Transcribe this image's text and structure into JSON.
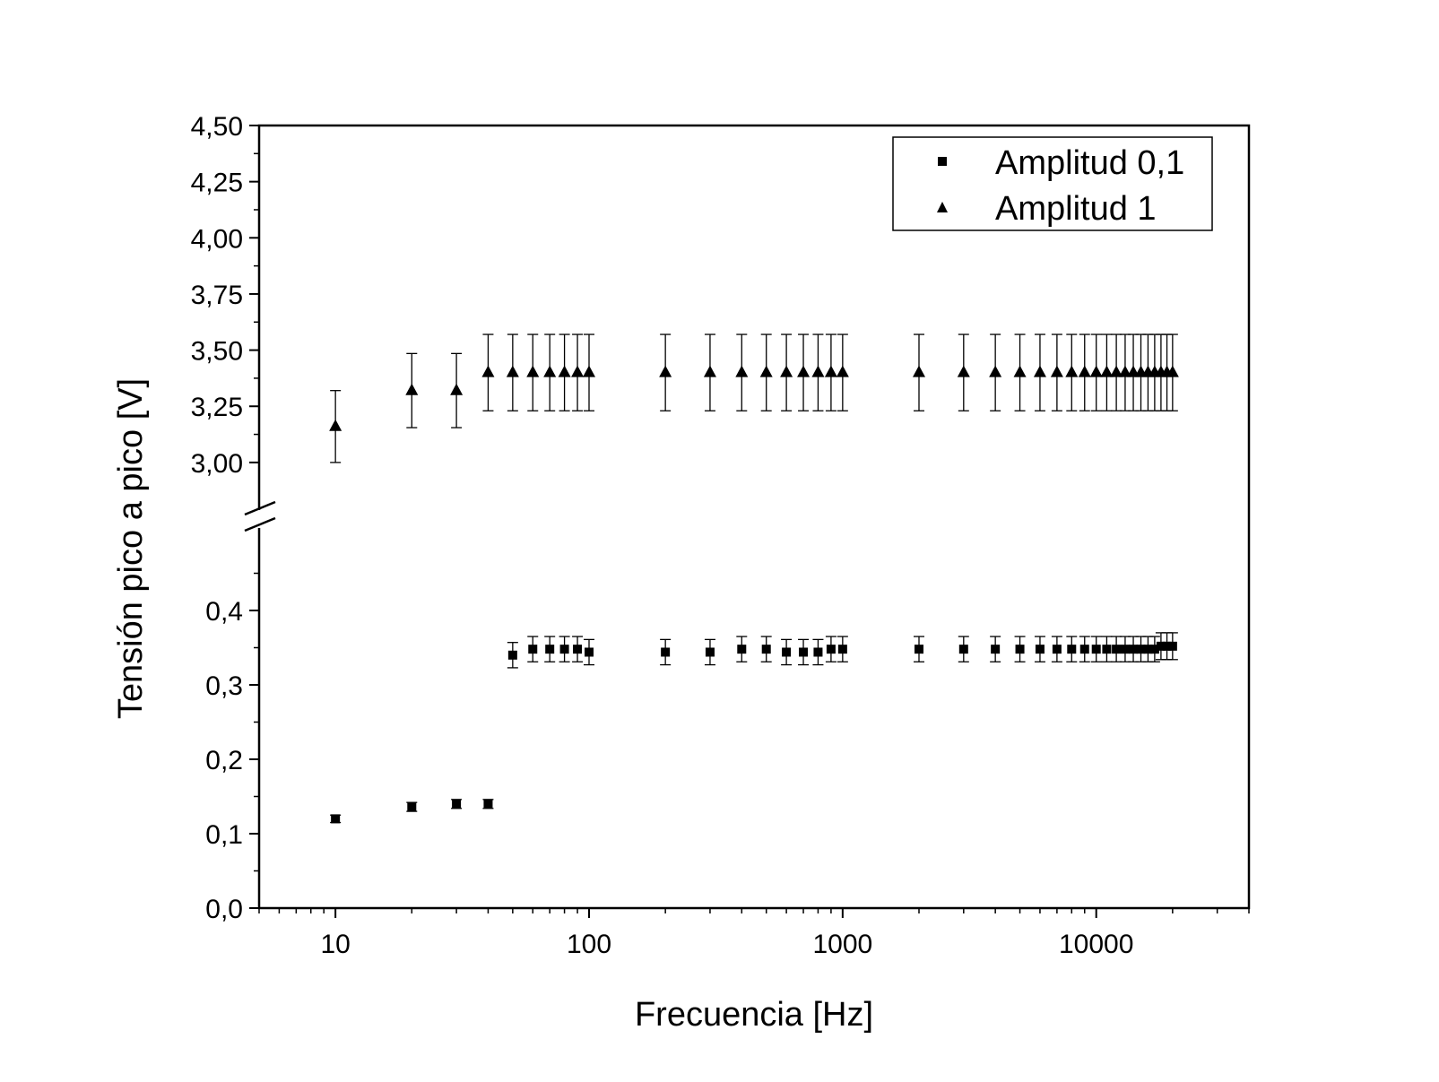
{
  "chart_data": {
    "type": "scatter",
    "xlabel": "Frecuencia [Hz]",
    "ylabel": "Tensión pico a pico [V]",
    "xscale": "log",
    "xlim": [
      5,
      40000
    ],
    "x_ticks": [
      {
        "value": 10,
        "label": "10"
      },
      {
        "value": 100,
        "label": "100"
      },
      {
        "value": 1000,
        "label": "1000"
      },
      {
        "value": 10000,
        "label": "10000"
      }
    ],
    "y_axis_break": true,
    "ylim_lower": [
      0,
      0.5
    ],
    "ylim_upper": [
      2.8,
      4.5
    ],
    "y_ticks_lower": [
      {
        "value": 0.0,
        "label": "0,0"
      },
      {
        "value": 0.1,
        "label": "0,1"
      },
      {
        "value": 0.2,
        "label": "0,2"
      },
      {
        "value": 0.3,
        "label": "0,3"
      },
      {
        "value": 0.4,
        "label": "0,4"
      }
    ],
    "y_ticks_upper": [
      {
        "value": 3.0,
        "label": "3,00"
      },
      {
        "value": 3.25,
        "label": "3,25"
      },
      {
        "value": 3.5,
        "label": "3,50"
      },
      {
        "value": 3.75,
        "label": "3,75"
      },
      {
        "value": 4.0,
        "label": "4,00"
      },
      {
        "value": 4.25,
        "label": "4,25"
      },
      {
        "value": 4.5,
        "label": "4,50"
      }
    ],
    "grid": false,
    "legend_position": "top-right",
    "series": [
      {
        "name": "Amplitud 0,1",
        "marker": "square",
        "color": "#000000",
        "points": [
          {
            "x": 10,
            "y": 0.12,
            "err": 0.005
          },
          {
            "x": 20,
            "y": 0.136,
            "err": 0.006
          },
          {
            "x": 30,
            "y": 0.14,
            "err": 0.006
          },
          {
            "x": 40,
            "y": 0.14,
            "err": 0.006
          },
          {
            "x": 50,
            "y": 0.34,
            "err": 0.017
          },
          {
            "x": 60,
            "y": 0.348,
            "err": 0.017
          },
          {
            "x": 70,
            "y": 0.348,
            "err": 0.017
          },
          {
            "x": 80,
            "y": 0.348,
            "err": 0.017
          },
          {
            "x": 90,
            "y": 0.348,
            "err": 0.017
          },
          {
            "x": 100,
            "y": 0.344,
            "err": 0.017
          },
          {
            "x": 200,
            "y": 0.344,
            "err": 0.017
          },
          {
            "x": 300,
            "y": 0.344,
            "err": 0.017
          },
          {
            "x": 400,
            "y": 0.348,
            "err": 0.017
          },
          {
            "x": 500,
            "y": 0.348,
            "err": 0.017
          },
          {
            "x": 600,
            "y": 0.344,
            "err": 0.017
          },
          {
            "x": 700,
            "y": 0.344,
            "err": 0.017
          },
          {
            "x": 800,
            "y": 0.344,
            "err": 0.017
          },
          {
            "x": 900,
            "y": 0.348,
            "err": 0.017
          },
          {
            "x": 1000,
            "y": 0.348,
            "err": 0.017
          },
          {
            "x": 2000,
            "y": 0.348,
            "err": 0.017
          },
          {
            "x": 3000,
            "y": 0.348,
            "err": 0.017
          },
          {
            "x": 4000,
            "y": 0.348,
            "err": 0.017
          },
          {
            "x": 5000,
            "y": 0.348,
            "err": 0.017
          },
          {
            "x": 6000,
            "y": 0.348,
            "err": 0.017
          },
          {
            "x": 7000,
            "y": 0.348,
            "err": 0.017
          },
          {
            "x": 8000,
            "y": 0.348,
            "err": 0.017
          },
          {
            "x": 9000,
            "y": 0.348,
            "err": 0.017
          },
          {
            "x": 10000,
            "y": 0.348,
            "err": 0.017
          },
          {
            "x": 11000,
            "y": 0.348,
            "err": 0.017
          },
          {
            "x": 12000,
            "y": 0.348,
            "err": 0.017
          },
          {
            "x": 13000,
            "y": 0.348,
            "err": 0.017
          },
          {
            "x": 14000,
            "y": 0.348,
            "err": 0.017
          },
          {
            "x": 15000,
            "y": 0.348,
            "err": 0.017
          },
          {
            "x": 16000,
            "y": 0.348,
            "err": 0.017
          },
          {
            "x": 17000,
            "y": 0.348,
            "err": 0.017
          },
          {
            "x": 18000,
            "y": 0.352,
            "err": 0.018
          },
          {
            "x": 19000,
            "y": 0.352,
            "err": 0.018
          },
          {
            "x": 20000,
            "y": 0.352,
            "err": 0.018
          }
        ]
      },
      {
        "name": "Amplitud 1",
        "marker": "triangle",
        "color": "#000000",
        "points": [
          {
            "x": 10,
            "y": 3.16,
            "err": 0.16
          },
          {
            "x": 20,
            "y": 3.32,
            "err": 0.165
          },
          {
            "x": 30,
            "y": 3.32,
            "err": 0.165
          },
          {
            "x": 40,
            "y": 3.4,
            "err": 0.17
          },
          {
            "x": 50,
            "y": 3.4,
            "err": 0.17
          },
          {
            "x": 60,
            "y": 3.4,
            "err": 0.17
          },
          {
            "x": 70,
            "y": 3.4,
            "err": 0.17
          },
          {
            "x": 80,
            "y": 3.4,
            "err": 0.17
          },
          {
            "x": 90,
            "y": 3.4,
            "err": 0.17
          },
          {
            "x": 100,
            "y": 3.4,
            "err": 0.17
          },
          {
            "x": 200,
            "y": 3.4,
            "err": 0.17
          },
          {
            "x": 300,
            "y": 3.4,
            "err": 0.17
          },
          {
            "x": 400,
            "y": 3.4,
            "err": 0.17
          },
          {
            "x": 500,
            "y": 3.4,
            "err": 0.17
          },
          {
            "x": 600,
            "y": 3.4,
            "err": 0.17
          },
          {
            "x": 700,
            "y": 3.4,
            "err": 0.17
          },
          {
            "x": 800,
            "y": 3.4,
            "err": 0.17
          },
          {
            "x": 900,
            "y": 3.4,
            "err": 0.17
          },
          {
            "x": 1000,
            "y": 3.4,
            "err": 0.17
          },
          {
            "x": 2000,
            "y": 3.4,
            "err": 0.17
          },
          {
            "x": 3000,
            "y": 3.4,
            "err": 0.17
          },
          {
            "x": 4000,
            "y": 3.4,
            "err": 0.17
          },
          {
            "x": 5000,
            "y": 3.4,
            "err": 0.17
          },
          {
            "x": 6000,
            "y": 3.4,
            "err": 0.17
          },
          {
            "x": 7000,
            "y": 3.4,
            "err": 0.17
          },
          {
            "x": 8000,
            "y": 3.4,
            "err": 0.17
          },
          {
            "x": 9000,
            "y": 3.4,
            "err": 0.17
          },
          {
            "x": 10000,
            "y": 3.4,
            "err": 0.17
          },
          {
            "x": 11000,
            "y": 3.4,
            "err": 0.17
          },
          {
            "x": 12000,
            "y": 3.4,
            "err": 0.17
          },
          {
            "x": 13000,
            "y": 3.4,
            "err": 0.17
          },
          {
            "x": 14000,
            "y": 3.4,
            "err": 0.17
          },
          {
            "x": 15000,
            "y": 3.4,
            "err": 0.17
          },
          {
            "x": 16000,
            "y": 3.4,
            "err": 0.17
          },
          {
            "x": 17000,
            "y": 3.4,
            "err": 0.17
          },
          {
            "x": 18000,
            "y": 3.4,
            "err": 0.17
          },
          {
            "x": 19000,
            "y": 3.4,
            "err": 0.17
          },
          {
            "x": 20000,
            "y": 3.4,
            "err": 0.17
          }
        ]
      }
    ]
  }
}
